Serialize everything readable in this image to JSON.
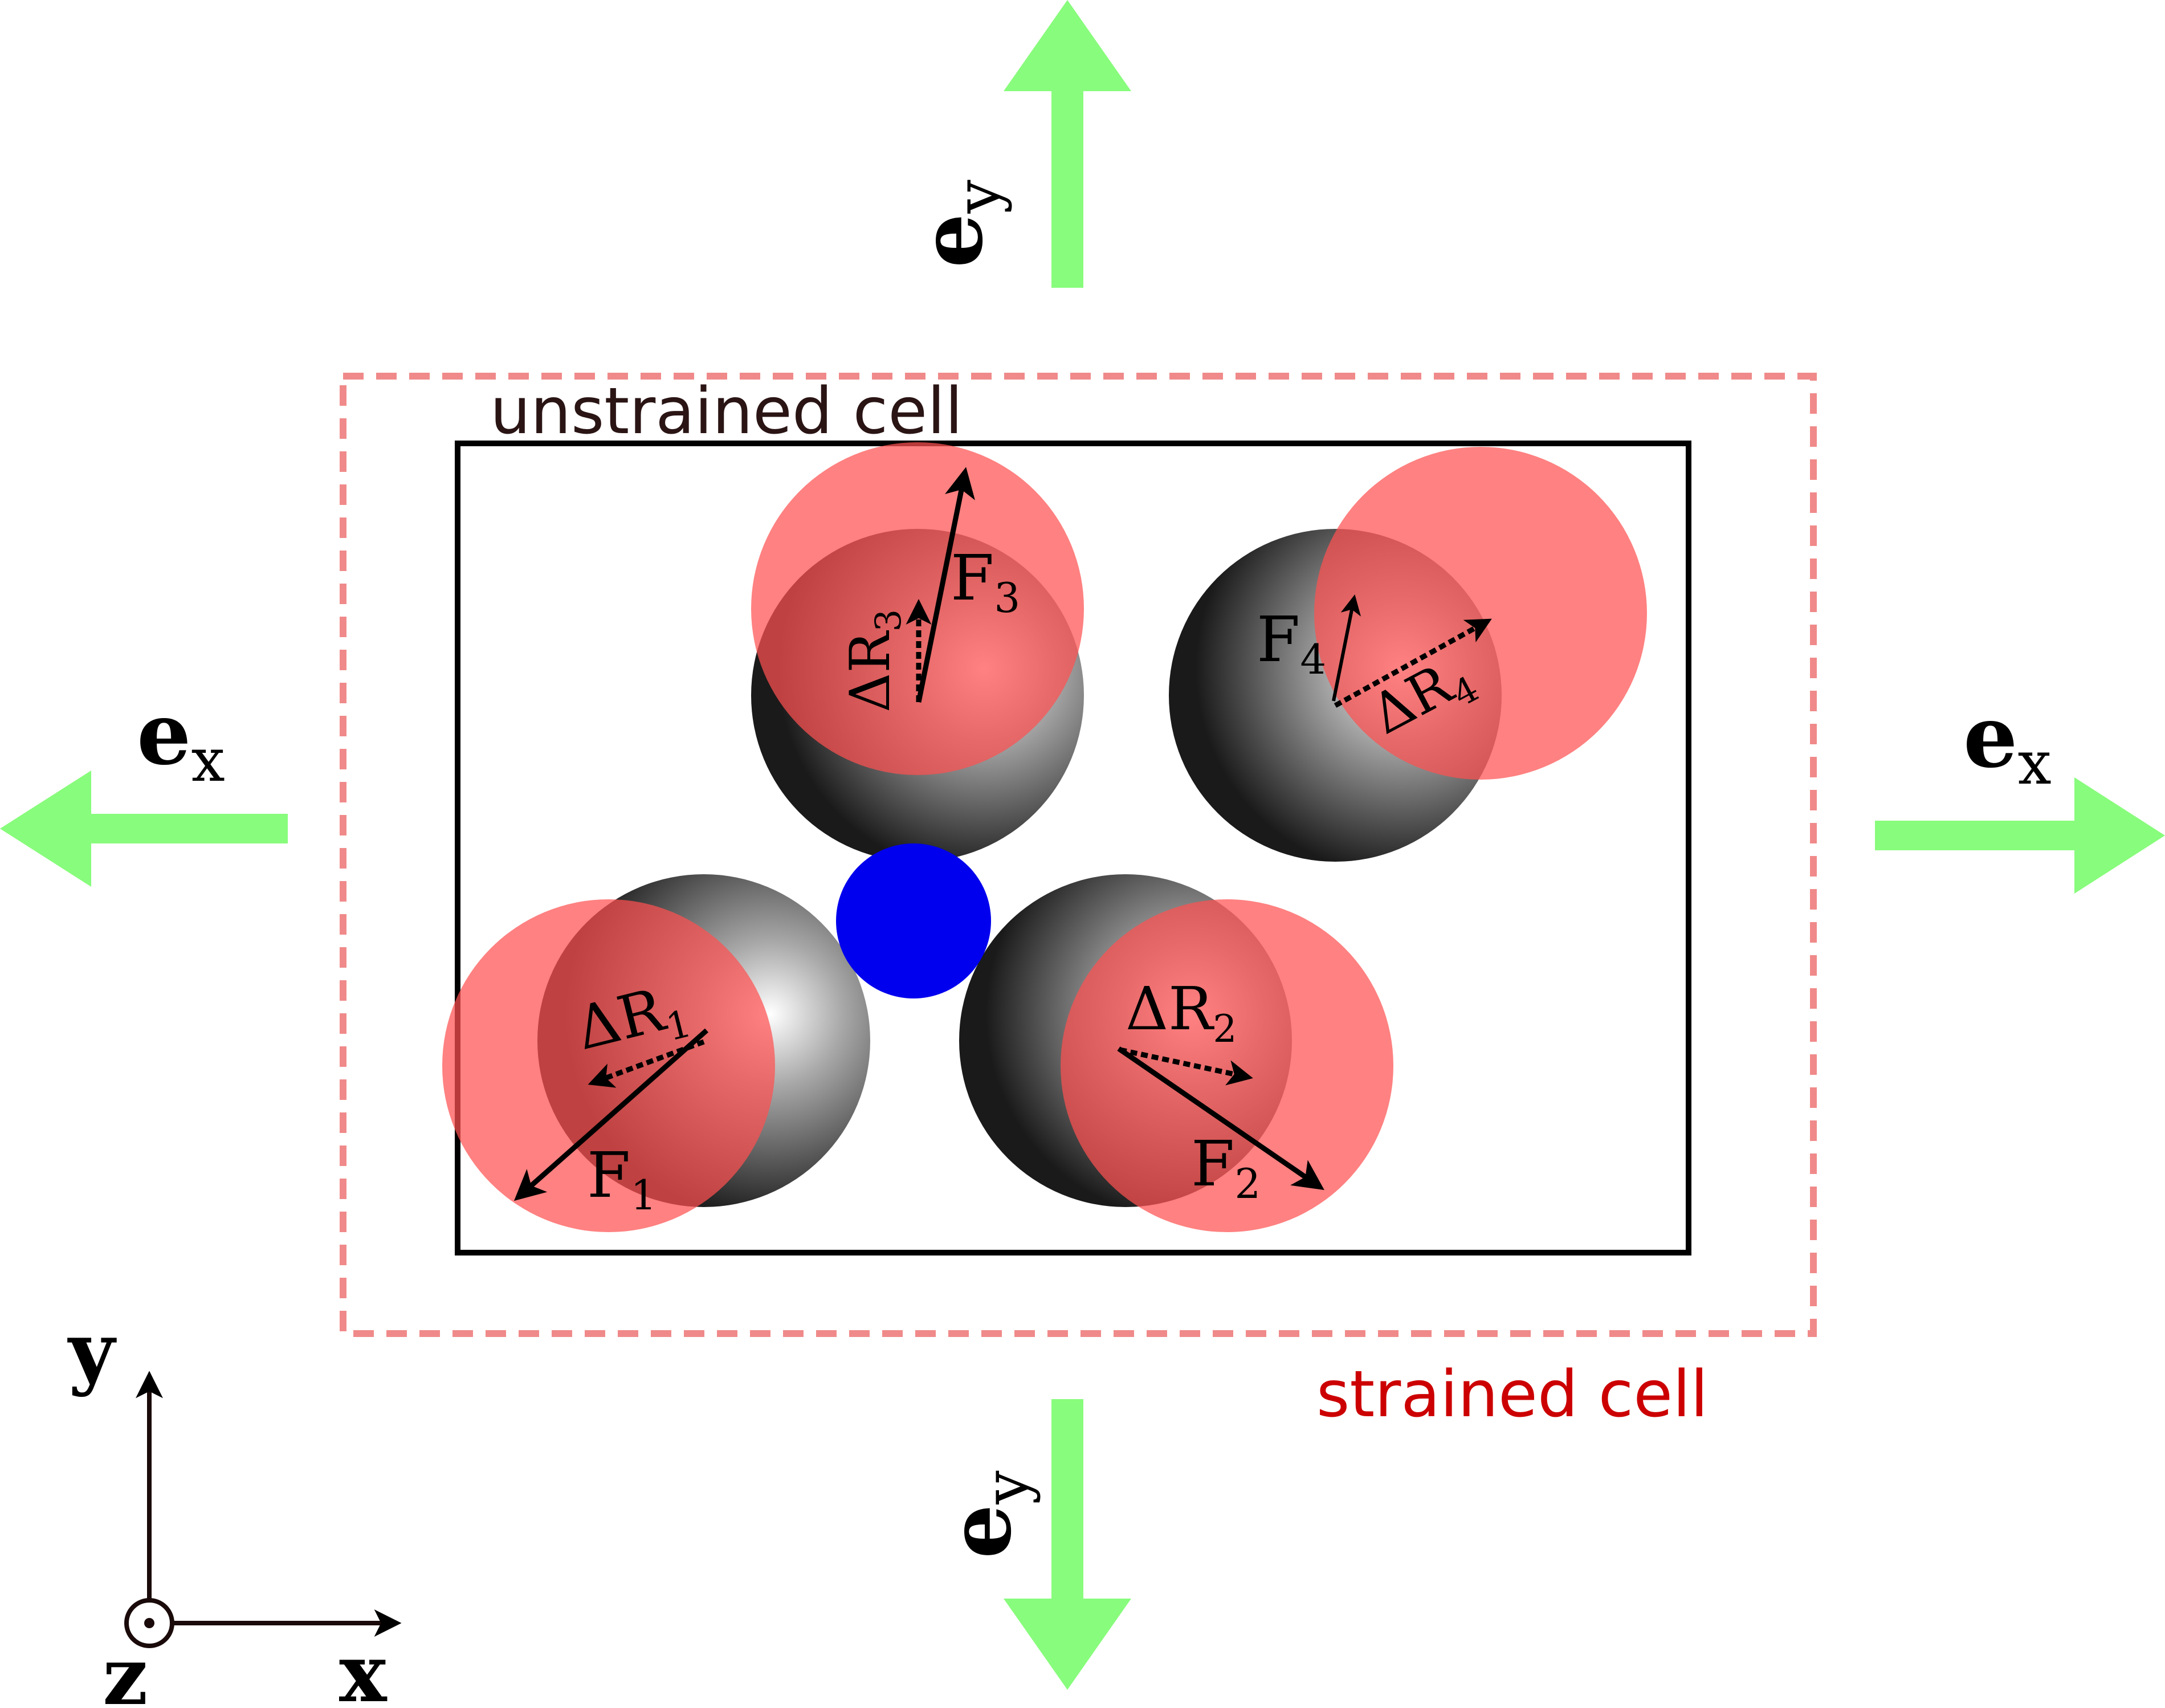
{
  "labels": {
    "unstrained_cell": "unstrained cell",
    "strained_cell": "strained cell",
    "strain_e": "e",
    "strain_x_sub": "x",
    "strain_y_sub": "y",
    "axis_y": "y",
    "axis_x": "x",
    "axis_z": "z"
  },
  "atoms": [
    {
      "force": "F",
      "disp": "ΔR",
      "index": "1"
    },
    {
      "force": "F",
      "disp": "ΔR",
      "index": "2"
    },
    {
      "force": "F",
      "disp": "ΔR",
      "index": "3"
    },
    {
      "force": "F",
      "disp": "ΔR",
      "index": "4"
    }
  ],
  "colors": {
    "arrow_green": "#88fc7c",
    "strained_dash": "#f08a8a",
    "strained_text": "#cc0000",
    "unstrained_text": "#2a1414",
    "displaced_atom": "#ff7070",
    "center_atom": "#0000ee",
    "sphere_dark": "#1e1e1e",
    "outline": "#000000"
  }
}
